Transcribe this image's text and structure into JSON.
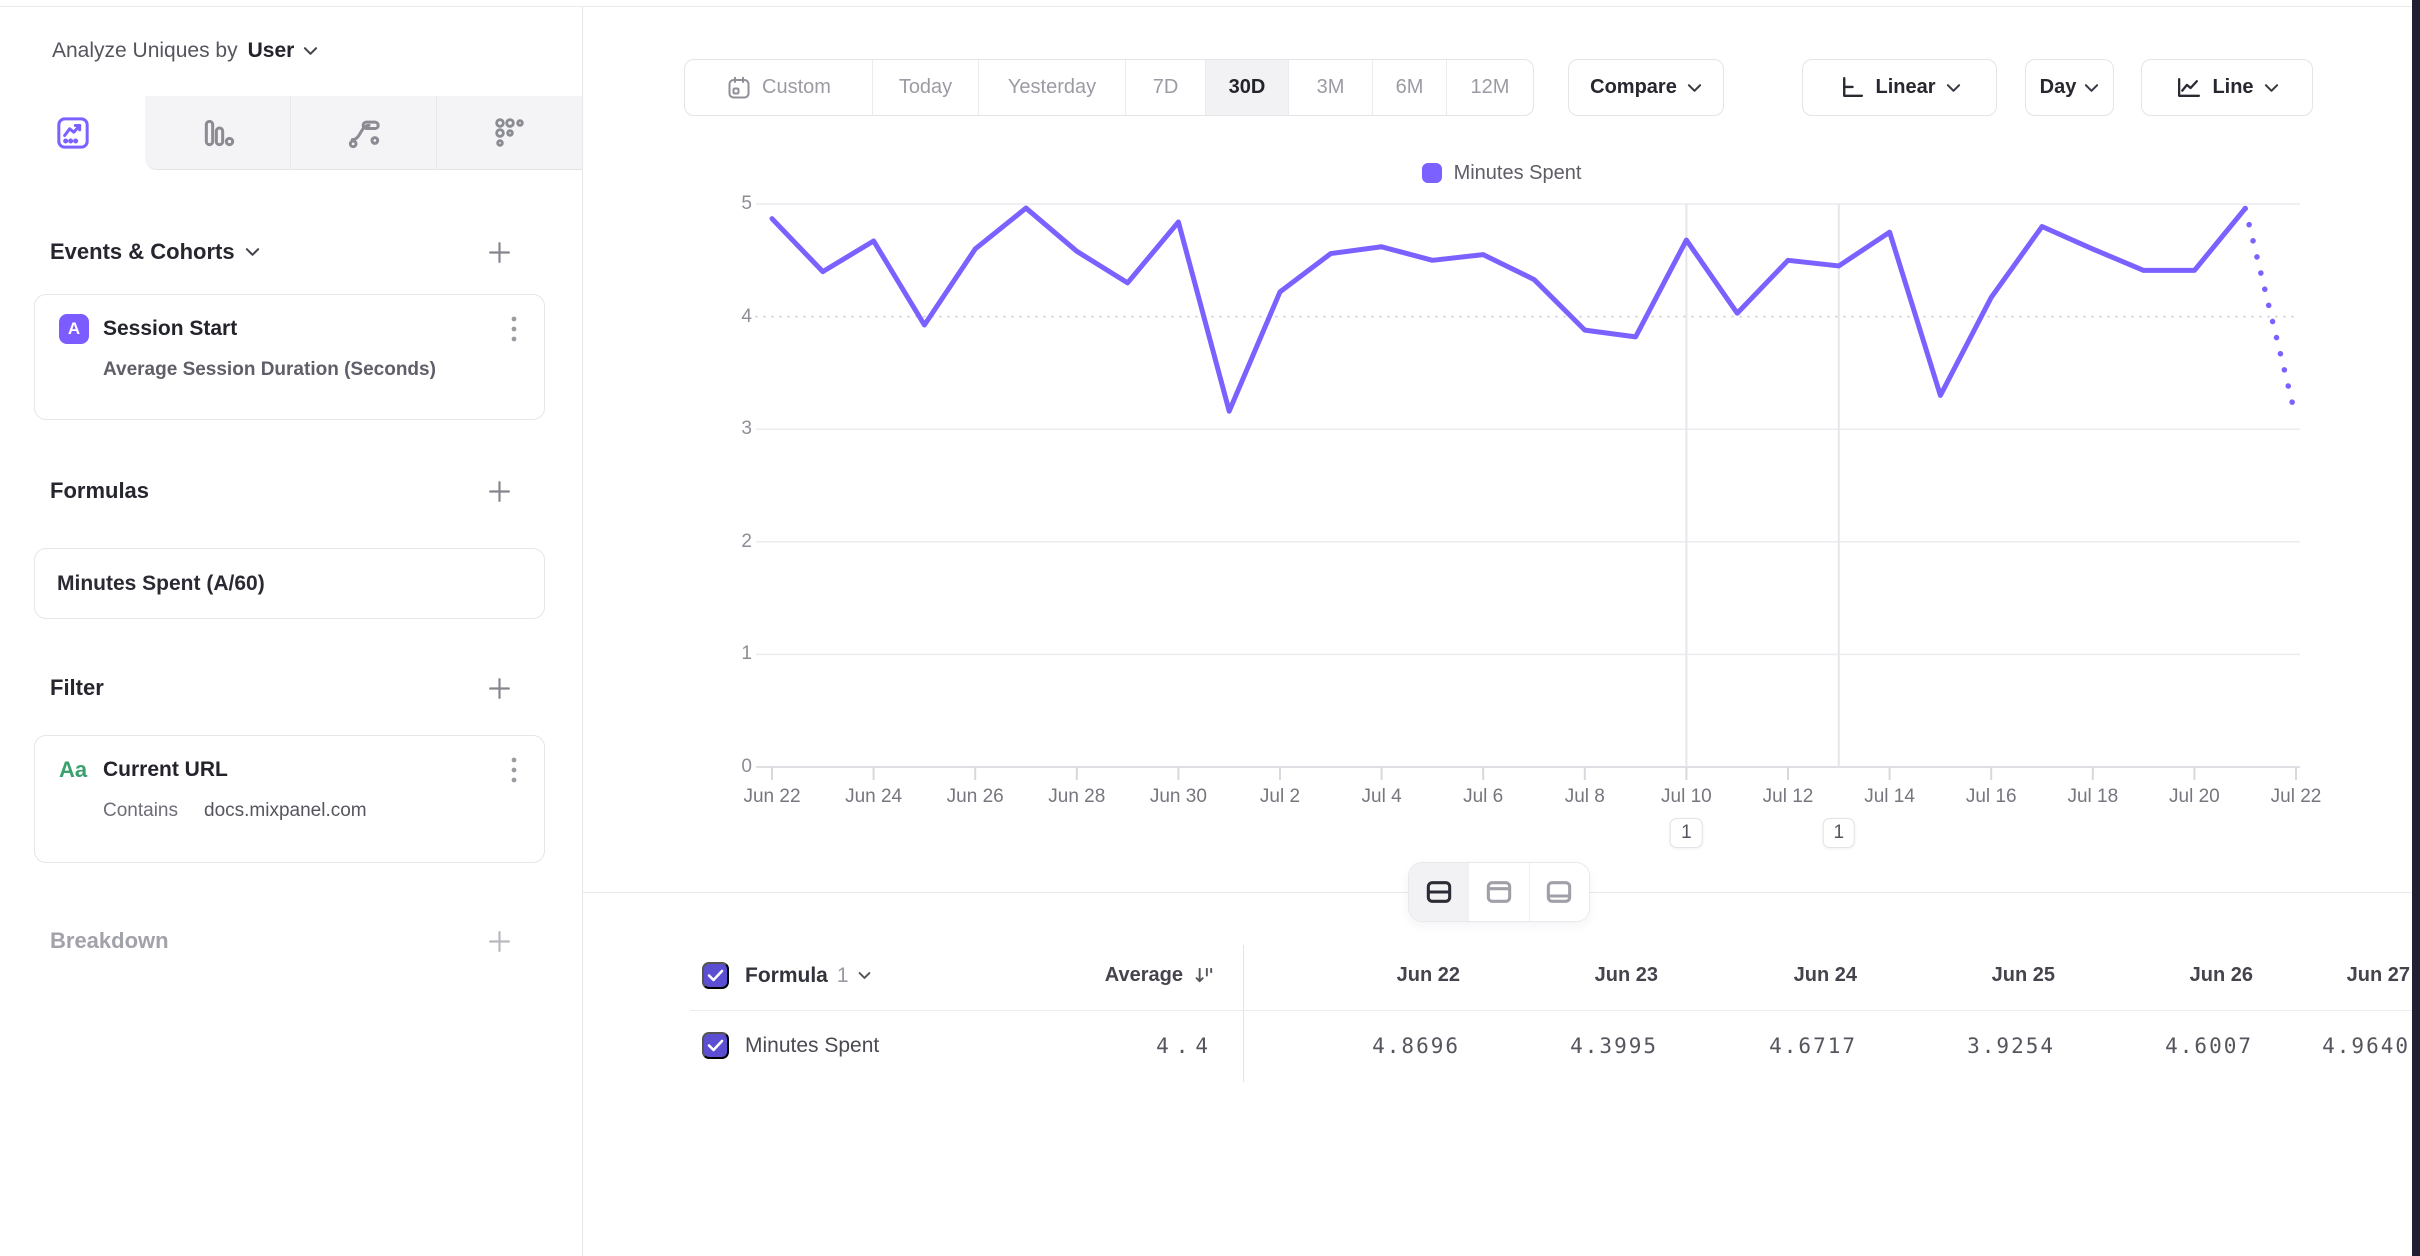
{
  "colors": {
    "accent_purple": "#7b61ff",
    "badge_purple": "#7c5cff",
    "checkbox_purple": "#5c4ed3",
    "filter_green": "#3aa06d"
  },
  "sidebar": {
    "analyze_label": "Analyze Uniques by",
    "analyze_value": "User",
    "tabs": [
      {
        "name": "insights",
        "selected": true
      },
      {
        "name": "funnels",
        "selected": false
      },
      {
        "name": "flows",
        "selected": false
      },
      {
        "name": "retention",
        "selected": false
      }
    ],
    "sections": {
      "events": {
        "title": "Events & Cohorts"
      },
      "formulas": {
        "title": "Formulas"
      },
      "filter": {
        "title": "Filter"
      },
      "breakdown": {
        "title": "Breakdown"
      }
    },
    "event_card": {
      "badge": "A",
      "title": "Session Start",
      "subtitle": "Average Session Duration (Seconds)"
    },
    "formula_card": {
      "title": "Minutes Spent (A/60)"
    },
    "filter_card": {
      "badge": "Aa",
      "title": "Current URL",
      "operator": "Contains",
      "value": "docs.mixpanel.com"
    }
  },
  "toolbar": {
    "ranges": [
      {
        "label": "Custom",
        "icon": "calendar",
        "selected": false
      },
      {
        "label": "Today",
        "selected": false
      },
      {
        "label": "Yesterday",
        "selected": false
      },
      {
        "label": "7D",
        "selected": false
      },
      {
        "label": "30D",
        "selected": true
      },
      {
        "label": "3M",
        "selected": false
      },
      {
        "label": "6M",
        "selected": false
      },
      {
        "label": "12M",
        "selected": false
      }
    ],
    "compare_label": "Compare",
    "scale_label": "Linear",
    "granularity_label": "Day",
    "chart_type_label": "Line"
  },
  "chart_data": {
    "type": "line",
    "title": "",
    "legend": [
      "Minutes Spent"
    ],
    "legend_position": "top-center",
    "grid": "horizontal",
    "ylim": [
      0,
      5
    ],
    "yticks": [
      0,
      1,
      2,
      3,
      4,
      5
    ],
    "x_tick_every": 2,
    "line_color": "#7b61ff",
    "dotted_from_index": 29,
    "x": [
      "Jun 22",
      "Jun 23",
      "Jun 24",
      "Jun 25",
      "Jun 26",
      "Jun 27",
      "Jun 28",
      "Jun 29",
      "Jun 30",
      "Jul 1",
      "Jul 2",
      "Jul 3",
      "Jul 4",
      "Jul 5",
      "Jul 6",
      "Jul 7",
      "Jul 8",
      "Jul 9",
      "Jul 10",
      "Jul 11",
      "Jul 12",
      "Jul 13",
      "Jul 14",
      "Jul 15",
      "Jul 16",
      "Jul 17",
      "Jul 18",
      "Jul 19",
      "Jul 20",
      "Jul 21",
      "Jul 22"
    ],
    "series": [
      {
        "name": "Minutes Spent",
        "values": [
          4.8696,
          4.3995,
          4.6717,
          3.9254,
          4.6007,
          4.964,
          4.58,
          4.3,
          4.84,
          3.16,
          4.22,
          4.56,
          4.62,
          4.5,
          4.55,
          4.33,
          3.88,
          3.82,
          4.68,
          4.03,
          4.5,
          4.45,
          4.75,
          3.3,
          4.17,
          4.8,
          4.6,
          4.41,
          4.41,
          4.96,
          3.1
        ]
      }
    ],
    "annotations": [
      {
        "x": "Jul 10",
        "x_index": 18,
        "label": "1"
      },
      {
        "x": "Jul 13",
        "x_index": 21,
        "label": "1"
      }
    ]
  },
  "table": {
    "group_label": "Formula",
    "group_number": "1",
    "average_label": "Average",
    "columns": [
      "Jun 22",
      "Jun 23",
      "Jun 24",
      "Jun 25",
      "Jun 26",
      "Jun 27"
    ],
    "row": {
      "label": "Minutes Spent",
      "average": "4.4",
      "values": [
        "4.8696",
        "4.3995",
        "4.6717",
        "3.9254",
        "4.6007",
        "4.9640"
      ]
    }
  }
}
